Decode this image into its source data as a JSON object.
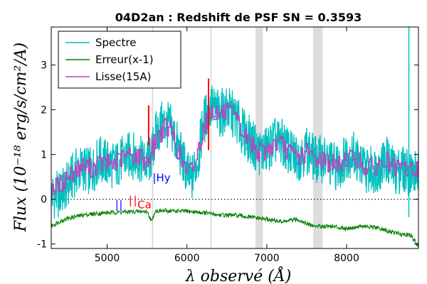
{
  "chart_data": {
    "type": "line",
    "title": "04D2an : Redshift de PSF SN = 0.3593",
    "xlabel": "λ observé (Å)",
    "ylabel": "Flux (10⁻¹⁸ erg/s/cm²/A)",
    "xlim": [
      4300,
      8900
    ],
    "ylim": [
      -1.1,
      3.85
    ],
    "x_ticks": [
      5000,
      6000,
      7000,
      8000
    ],
    "y_ticks": [
      -1,
      0,
      1,
      2,
      3
    ],
    "x_tick_labels": [
      "5000",
      "6000",
      "7000",
      "8000"
    ],
    "y_tick_labels": [
      "-1",
      "0",
      "1",
      "2",
      "3"
    ],
    "grid": false,
    "legend_position": "top-left",
    "zero_line": 0,
    "telluric_bands": [
      [
        6860,
        6950
      ],
      [
        7580,
        7700
      ]
    ],
    "reference_lines_x": [
      5570,
      6300
    ],
    "series": [
      {
        "name": "Spectre",
        "color": "#00bfbf",
        "x": [
          4300,
          4400,
          4500,
          4600,
          4700,
          4800,
          4900,
          5000,
          5100,
          5200,
          5300,
          5400,
          5500,
          5560,
          5600,
          5700,
          5800,
          5900,
          6000,
          6050,
          6100,
          6150,
          6200,
          6300,
          6400,
          6500,
          6600,
          6700,
          6800,
          6900,
          7000,
          7100,
          7200,
          7300,
          7400,
          7500,
          7600,
          7700,
          7800,
          7900,
          8000,
          8100,
          8200,
          8300,
          8400,
          8500,
          8600,
          8700,
          8800,
          8900
        ],
        "y": [
          0.1,
          0.1,
          0.3,
          0.6,
          0.7,
          0.6,
          0.9,
          0.8,
          0.75,
          0.9,
          1.0,
          0.9,
          0.8,
          0.95,
          1.4,
          1.7,
          1.6,
          1.1,
          0.6,
          0.4,
          0.7,
          1.0,
          1.7,
          2.1,
          1.9,
          2.0,
          1.85,
          1.5,
          1.3,
          1.05,
          1.1,
          1.3,
          1.25,
          1.0,
          0.95,
          1.1,
          0.9,
          0.9,
          0.8,
          0.7,
          1.0,
          1.0,
          0.7,
          0.65,
          0.7,
          0.9,
          0.6,
          0.7,
          0.6,
          0.6
        ]
      },
      {
        "name": "Erreur(x-1)",
        "color": "#008000",
        "x": [
          4300,
          4400,
          4500,
          4700,
          5000,
          5300,
          5500,
          5560,
          5600,
          5800,
          6000,
          6200,
          6400,
          6600,
          6800,
          7000,
          7200,
          7400,
          7500,
          7600,
          7800,
          8000,
          8200,
          8400,
          8600,
          8800,
          8900
        ],
        "y": [
          -0.6,
          -0.5,
          -0.43,
          -0.35,
          -0.3,
          -0.28,
          -0.27,
          -0.5,
          -0.26,
          -0.26,
          -0.27,
          -0.3,
          -0.35,
          -0.36,
          -0.4,
          -0.45,
          -0.5,
          -0.45,
          -0.55,
          -0.6,
          -0.6,
          -0.65,
          -0.6,
          -0.65,
          -0.75,
          -0.8,
          -1.05
        ]
      },
      {
        "name": "Lisse(15A)",
        "color": "#bf40bf",
        "x": [
          4300,
          4400,
          4500,
          4600,
          4700,
          4800,
          4900,
          5000,
          5100,
          5200,
          5300,
          5400,
          5500,
          5600,
          5700,
          5800,
          5900,
          6000,
          6100,
          6200,
          6300,
          6400,
          6500,
          6600,
          6700,
          6800,
          6900,
          7000,
          7100,
          7200,
          7300,
          7400,
          7500,
          7600,
          7700,
          7800,
          7900,
          8000,
          8100,
          8200,
          8300,
          8400,
          8500,
          8600,
          8700,
          8800,
          8900
        ],
        "y": [
          0.25,
          0.3,
          0.5,
          0.65,
          0.75,
          0.7,
          0.8,
          0.8,
          0.8,
          0.95,
          1.0,
          0.95,
          0.85,
          1.3,
          1.6,
          1.55,
          1.0,
          0.55,
          0.8,
          1.6,
          2.0,
          1.9,
          1.95,
          1.8,
          1.45,
          1.25,
          1.05,
          1.1,
          1.25,
          1.2,
          1.0,
          0.95,
          1.05,
          0.9,
          0.9,
          0.8,
          0.75,
          0.95,
          0.95,
          0.75,
          0.7,
          0.75,
          0.85,
          0.65,
          0.7,
          0.65,
          0.65
        ]
      }
    ],
    "annotations": [
      {
        "text": "|Hy",
        "x": 5570,
        "y": 0.4,
        "color": "#0000ff"
      },
      {
        "text": "Ca",
        "x": 5380,
        "y": -0.2,
        "color": "#ff0000"
      },
      {
        "text": "|",
        "x": 5100,
        "y": -0.2,
        "color": "#0000ff"
      },
      {
        "text": "|",
        "x": 5150,
        "y": -0.2,
        "color": "#0000ff"
      },
      {
        "text": "|",
        "x": 5270,
        "y": -0.1,
        "color": "#ff0000"
      },
      {
        "text": "|",
        "x": 5330,
        "y": -0.1,
        "color": "#ff0000"
      }
    ],
    "marker_ticks": [
      {
        "x": 5520,
        "y0": 1.2,
        "y1": 2.1,
        "color": "#ff0000"
      },
      {
        "x": 6270,
        "y0": 1.1,
        "y1": 2.7,
        "color": "#ff0000"
      }
    ]
  }
}
